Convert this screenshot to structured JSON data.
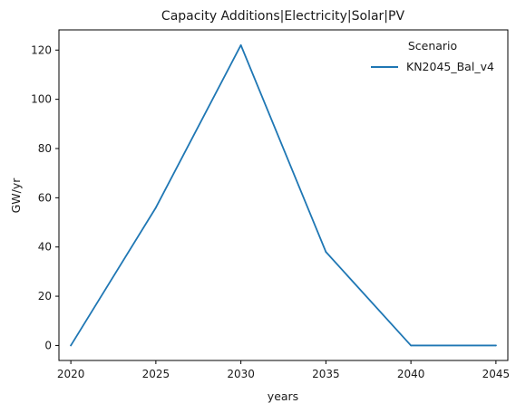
{
  "chart_data": {
    "type": "line",
    "title": "Capacity Additions|Electricity|Solar|PV",
    "xlabel": "years",
    "ylabel": "GW/yr",
    "xlim": [
      2019.3,
      2045.7
    ],
    "ylim": [
      -6.1,
      128.2
    ],
    "x_ticks": [
      "2020",
      "2025",
      "2030",
      "2035",
      "2040",
      "2045"
    ],
    "y_ticks": [
      "0",
      "20",
      "40",
      "60",
      "80",
      "100",
      "120"
    ],
    "grid": false,
    "legend": {
      "title": "Scenario",
      "placement": "top-right"
    },
    "series": [
      {
        "name": "KN2045_Bal_v4",
        "color": "#1f77b4",
        "x": [
          2020,
          2025,
          2030,
          2035,
          2040,
          2045
        ],
        "y": [
          0,
          56,
          122,
          38,
          0,
          0
        ]
      }
    ]
  }
}
